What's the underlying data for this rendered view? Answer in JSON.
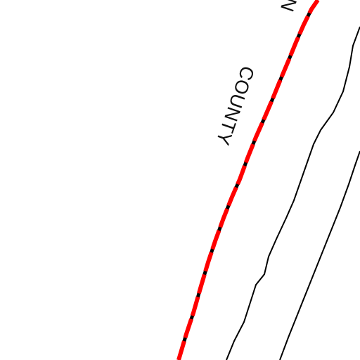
{
  "map": {
    "labels": {
      "county": "COUNTY",
      "partial_top": "N"
    },
    "colors": {
      "background": "#ffffff",
      "boundary_red": "#ff0000",
      "boundary_black": "#000000",
      "contour": "#000000",
      "label": "#111111"
    }
  }
}
